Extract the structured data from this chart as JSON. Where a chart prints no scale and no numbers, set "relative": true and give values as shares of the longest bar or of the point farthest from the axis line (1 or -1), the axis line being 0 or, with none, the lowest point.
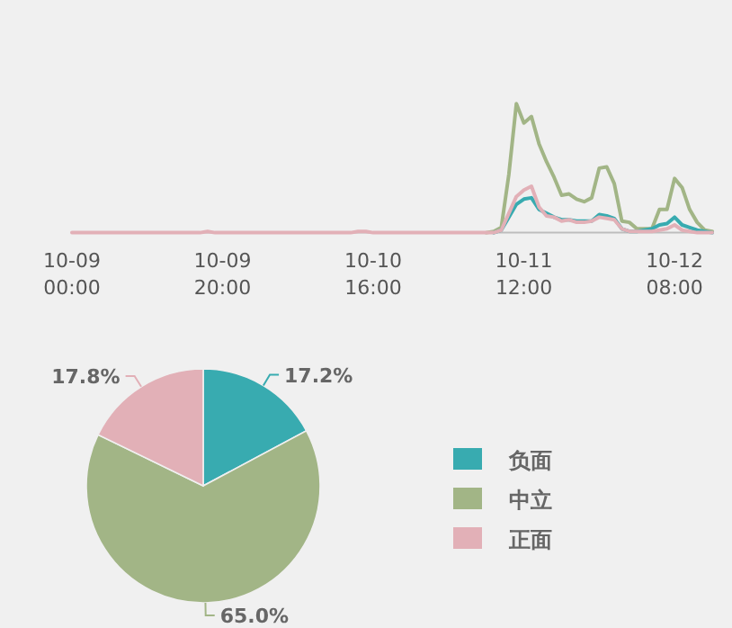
{
  "chart_data": [
    {
      "type": "line",
      "relative": true,
      "marker": "none",
      "line_style": "solid",
      "categories": [
        "10-09 00:00",
        null,
        null,
        null,
        null,
        null,
        null,
        null,
        null,
        null,
        null,
        null,
        null,
        null,
        null,
        null,
        null,
        null,
        null,
        null,
        "10-09 20:00",
        null,
        null,
        null,
        null,
        null,
        null,
        null,
        null,
        null,
        null,
        null,
        null,
        null,
        null,
        null,
        null,
        null,
        null,
        null,
        "10-10 16:00",
        null,
        null,
        null,
        null,
        null,
        null,
        null,
        null,
        null,
        null,
        null,
        null,
        null,
        null,
        null,
        null,
        null,
        null,
        null,
        "10-11 12:00",
        null,
        null,
        null,
        null,
        null,
        null,
        null,
        null,
        null,
        null,
        null,
        null,
        null,
        null,
        null,
        null,
        null,
        null,
        null,
        "10-12 08:00",
        null,
        null,
        null,
        null,
        null
      ],
      "series": [
        {
          "color": "#a2b586",
          "values": [
            null,
            null,
            null,
            null,
            null,
            null,
            null,
            null,
            null,
            null,
            null,
            null,
            null,
            null,
            null,
            null,
            null,
            null,
            null,
            null,
            null,
            null,
            null,
            null,
            null,
            null,
            null,
            null,
            null,
            null,
            null,
            null,
            null,
            null,
            null,
            null,
            null,
            null,
            null,
            null,
            null,
            null,
            null,
            null,
            null,
            null,
            null,
            null,
            null,
            null,
            null,
            null,
            null,
            null,
            null,
            0,
            0.01,
            0.04,
            0.45,
            1,
            0.85,
            0.9,
            0.69,
            0.55,
            0.43,
            0.29,
            0.3,
            0.26,
            0.24,
            0.27,
            0.5,
            0.51,
            0.38,
            0.09,
            0.08,
            0.03,
            0.03,
            0.03,
            0.18,
            0.18,
            0.42,
            0.35,
            0.18,
            0.08,
            0.02,
            0.01
          ]
        },
        {
          "color": "#38abb0",
          "values": [
            null,
            null,
            null,
            null,
            null,
            null,
            null,
            null,
            null,
            null,
            null,
            null,
            null,
            null,
            null,
            null,
            null,
            null,
            null,
            null,
            null,
            null,
            null,
            null,
            null,
            null,
            null,
            null,
            null,
            null,
            null,
            null,
            null,
            null,
            null,
            null,
            null,
            null,
            null,
            null,
            null,
            null,
            null,
            null,
            null,
            null,
            null,
            null,
            null,
            null,
            null,
            null,
            null,
            null,
            null,
            null,
            0,
            0.02,
            0.12,
            0.22,
            0.26,
            0.27,
            0.18,
            0.15,
            0.12,
            0.1,
            0.1,
            0.09,
            0.09,
            0.09,
            0.14,
            0.13,
            0.11,
            0.03,
            0.01,
            0.01,
            0.02,
            0.03,
            0.06,
            0.07,
            0.12,
            0.06,
            0.04,
            0.02,
            0.01,
            0
          ]
        },
        {
          "color": "#e2b0b7",
          "values": [
            0,
            0,
            0,
            0,
            0,
            0,
            0,
            0,
            0,
            0,
            0,
            0,
            0,
            0,
            0,
            0,
            0,
            0,
            0.01,
            0,
            0,
            0,
            0,
            0,
            0,
            0,
            0,
            0,
            0,
            0,
            0,
            0,
            0,
            0,
            0,
            0,
            0,
            0,
            0.01,
            0.01,
            0,
            0,
            0,
            0,
            0,
            0,
            0,
            0,
            0,
            0,
            0,
            0,
            0,
            0,
            0,
            0,
            0,
            0.02,
            0.15,
            0.28,
            0.33,
            0.36,
            0.2,
            0.13,
            0.12,
            0.09,
            0.1,
            0.08,
            0.08,
            0.09,
            0.12,
            0.11,
            0.1,
            0.03,
            0.01,
            0.01,
            0.01,
            0.01,
            0.02,
            0.03,
            0.06,
            0.02,
            0.01,
            0,
            0,
            0
          ]
        }
      ]
    },
    {
      "type": "pie",
      "legend": "right",
      "categories": [
        "负面",
        "中立",
        "正面"
      ],
      "values": [
        17.2,
        65.0,
        17.8
      ],
      "colors": [
        "#38abb0",
        "#a2b586",
        "#e2b0b7"
      ],
      "value_labels": [
        "17.2%",
        "65.0%",
        "17.8%"
      ]
    }
  ]
}
